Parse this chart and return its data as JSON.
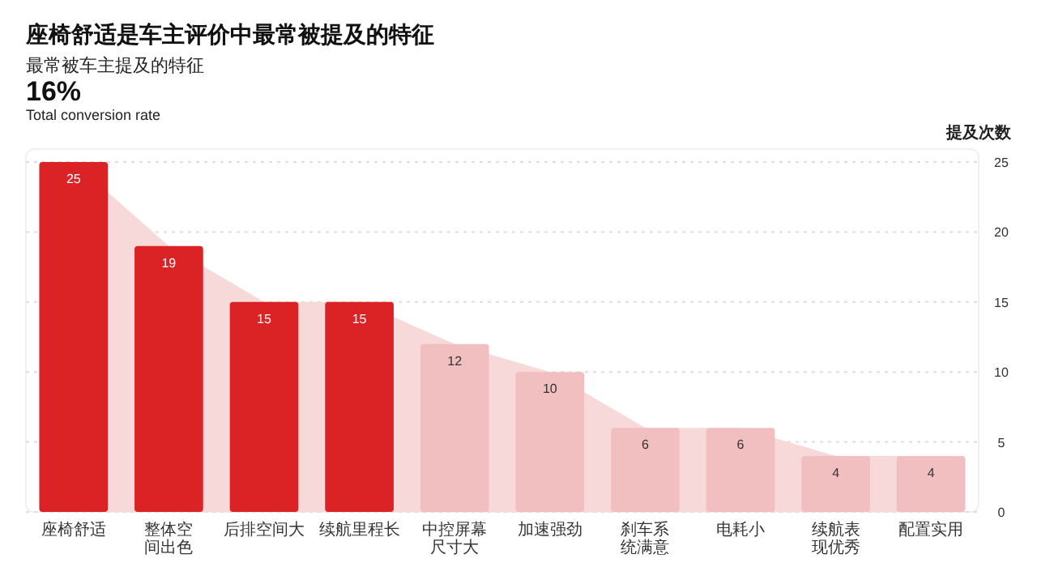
{
  "chart_data": {
    "type": "bar",
    "title": "座椅舒适是车主评价中最常被提及的特征",
    "subtitle": "最常被车主提及的特征",
    "annotations": [
      "16%",
      "Total conversion rate"
    ],
    "ylabel": "提及次数",
    "categories": [
      "座椅舒适",
      "整体空间出色",
      "后排空间大",
      "续航里程长",
      "中控屏幕尺寸大",
      "加速强劲",
      "刹车系统满意",
      "电耗小",
      "续航表现优秀",
      "配置实用"
    ],
    "series": [
      {
        "type": "area",
        "color": "#f7d9da",
        "values": [
          25,
          19,
          15,
          15,
          12,
          10,
          6,
          6,
          4,
          4
        ]
      },
      {
        "value_labels": [
          "25",
          "19",
          "15",
          "15",
          "12",
          "10",
          "6",
          "6",
          "4",
          "4"
        ],
        "colors": [
          "#db2325",
          "#db2325",
          "#db2325",
          "#db2325",
          "#f2bfc0",
          "#f2bfc0",
          "#f2bfc0",
          "#f2bfc0",
          "#f2bfc0",
          "#f2bfc0"
        ],
        "values": [
          25,
          19,
          15,
          15,
          12,
          10,
          6,
          6,
          4,
          4
        ]
      }
    ],
    "ylim": [
      0,
      25
    ],
    "yticks": [
      0,
      5,
      10,
      15,
      20,
      25
    ],
    "grid": "y"
  }
}
